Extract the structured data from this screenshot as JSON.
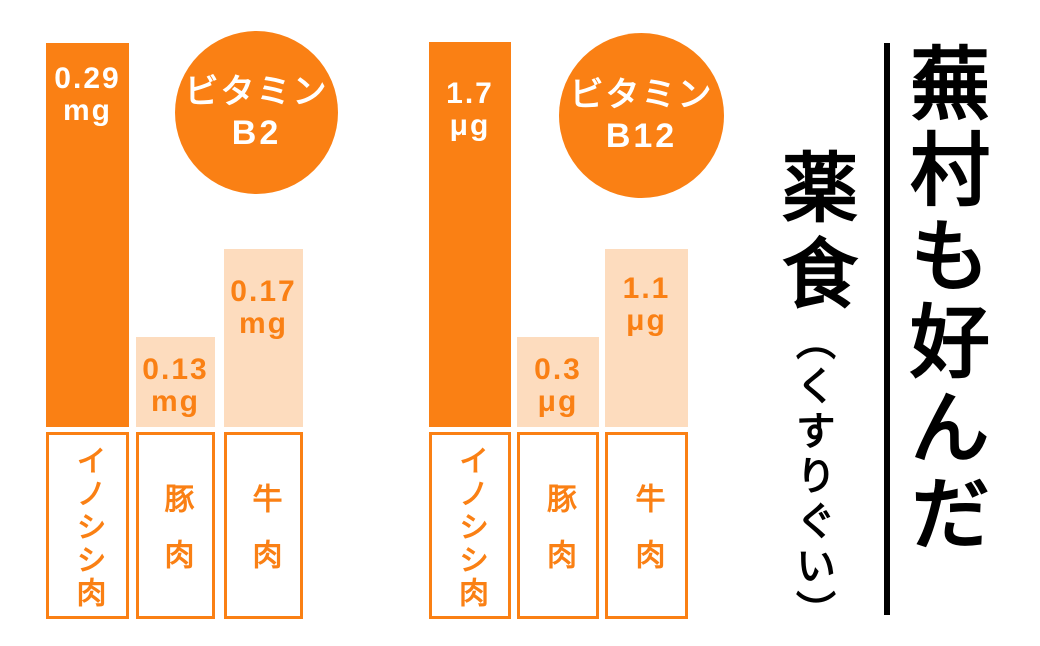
{
  "colors": {
    "accent": "#fa8014",
    "accent_light": "#fddcbe",
    "text_on_dark_bar": "#ffffff",
    "caption_ink": "#000000"
  },
  "charts": [
    {
      "badge": {
        "line1": "ビタミン",
        "line2": "B2"
      },
      "bars": [
        {
          "label": "イノシシ肉",
          "value": "0.29",
          "unit": "mg",
          "highlight": true
        },
        {
          "label": "豚肉",
          "value": "0.13",
          "unit": "mg",
          "highlight": false
        },
        {
          "label": "牛肉",
          "value": "0.17",
          "unit": "mg",
          "highlight": false
        }
      ]
    },
    {
      "badge": {
        "line1": "ビタミン",
        "line2": "B12"
      },
      "bars": [
        {
          "label": "イノシシ肉",
          "value": "1.7",
          "unit": "μg",
          "highlight": true
        },
        {
          "label": "豚肉",
          "value": "0.3",
          "unit": "μg",
          "highlight": false
        },
        {
          "label": "牛肉",
          "value": "1.1",
          "unit": "μg",
          "highlight": false
        }
      ]
    }
  ],
  "caption": {
    "main": "蕪村も好んだ",
    "sub_kanji": "薬食",
    "sub_kana": "（くすりぐい）"
  },
  "chart_data": [
    {
      "type": "bar",
      "title": "ビタミンB2",
      "categories": [
        "イノシシ肉",
        "豚肉",
        "牛肉"
      ],
      "values": [
        0.29,
        0.13,
        0.17
      ],
      "unit": "mg",
      "data_labels": [
        "0.29mg",
        "0.13mg",
        "0.17mg"
      ],
      "highlight_category": "イノシシ肉",
      "legend": "none",
      "grid": false,
      "axes_hidden": true
    },
    {
      "type": "bar",
      "title": "ビタミンB12",
      "categories": [
        "イノシシ肉",
        "豚肉",
        "牛肉"
      ],
      "values": [
        1.7,
        0.3,
        1.1
      ],
      "unit": "μg",
      "data_labels": [
        "1.7μg",
        "0.3μg",
        "1.1μg"
      ],
      "highlight_category": "イノシシ肉",
      "legend": "none",
      "grid": false,
      "axes_hidden": true
    }
  ]
}
